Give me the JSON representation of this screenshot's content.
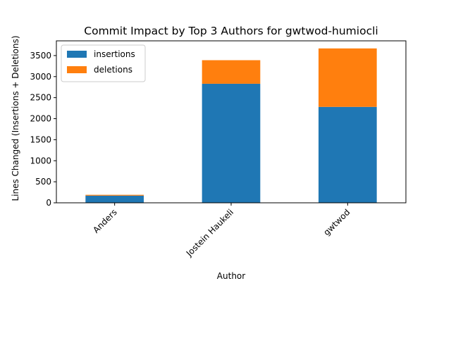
{
  "chart_data": {
    "type": "bar",
    "stacked": true,
    "title": "Commit Impact by Top 3 Authors for gwtwod-humiocli",
    "xlabel": "Author",
    "ylabel": "Lines Changed (Insertions + Deletions)",
    "categories": [
      "Anders",
      "Jostein Haukeli",
      "gwtwod"
    ],
    "series": [
      {
        "name": "insertions",
        "values": [
          170,
          2830,
          2280
        ],
        "color": "#1f77b4"
      },
      {
        "name": "deletions",
        "values": [
          20,
          560,
          1390
        ],
        "color": "#ff7f0e"
      }
    ],
    "ylim": [
      0,
      3850
    ],
    "yticks": [
      0,
      500,
      1000,
      1500,
      2000,
      2500,
      3000,
      3500
    ],
    "grid": false,
    "legend_position": "upper left",
    "x_tick_rotation": 45
  }
}
